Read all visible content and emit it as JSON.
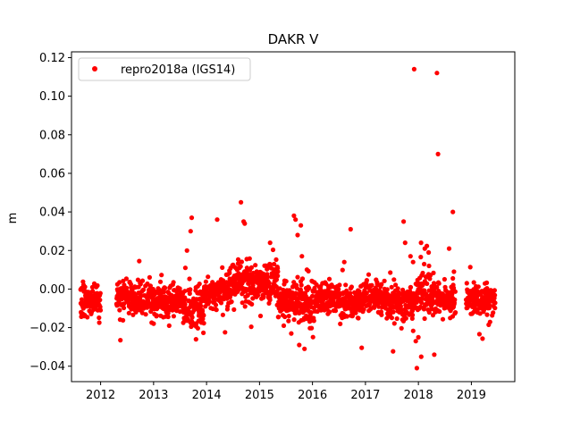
{
  "chart_data": {
    "type": "scatter",
    "title": "DAKR V",
    "xlabel": "",
    "ylabel": "m",
    "xlim": [
      2011.45,
      2019.82
    ],
    "ylim": [
      -0.048,
      0.123
    ],
    "grid": false,
    "legend_position": "top-left",
    "x_ticks": [
      2012,
      2013,
      2014,
      2015,
      2016,
      2017,
      2018,
      2019
    ],
    "x_tick_labels": [
      "2012",
      "2013",
      "2014",
      "2015",
      "2016",
      "2017",
      "2018",
      "2019"
    ],
    "y_ticks": [
      -0.04,
      -0.02,
      0.0,
      0.02,
      0.04,
      0.06,
      0.08,
      0.1,
      0.12
    ],
    "y_tick_labels": [
      "−0.04",
      "−0.02",
      "0.00",
      "0.02",
      "0.04",
      "0.06",
      "0.08",
      "0.10",
      "0.12"
    ],
    "series": [
      {
        "name": "repro2018a (IGS14)",
        "color": "#ff0000",
        "marker": "circle",
        "segments": [
          {
            "x0": 2011.62,
            "x1": 2011.72,
            "mean": -0.006,
            "std": 0.005
          },
          {
            "x0": 2011.72,
            "x1": 2012.0,
            "mean": -0.006,
            "std": 0.004
          },
          {
            "x0": 2012.3,
            "x1": 2012.6,
            "mean": -0.004,
            "std": 0.004
          },
          {
            "x0": 2012.6,
            "x1": 2013.0,
            "mean": -0.006,
            "std": 0.004
          },
          {
            "x0": 2013.0,
            "x1": 2013.55,
            "mean": -0.006,
            "std": 0.004
          },
          {
            "x0": 2013.55,
            "x1": 2013.95,
            "mean": -0.009,
            "std": 0.005
          },
          {
            "x0": 2013.95,
            "x1": 2014.4,
            "mean": -0.002,
            "std": 0.004
          },
          {
            "x0": 2014.4,
            "x1": 2014.85,
            "mean": 0.004,
            "std": 0.005
          },
          {
            "x0": 2014.85,
            "x1": 2015.35,
            "mean": 0.003,
            "std": 0.005
          },
          {
            "x0": 2015.35,
            "x1": 2015.7,
            "mean": -0.006,
            "std": 0.005
          },
          {
            "x0": 2015.7,
            "x1": 2016.05,
            "mean": -0.007,
            "std": 0.007
          },
          {
            "x0": 2016.05,
            "x1": 2016.5,
            "mean": -0.004,
            "std": 0.004
          },
          {
            "x0": 2016.5,
            "x1": 2016.95,
            "mean": -0.007,
            "std": 0.004
          },
          {
            "x0": 2016.95,
            "x1": 2017.4,
            "mean": -0.004,
            "std": 0.004
          },
          {
            "x0": 2017.4,
            "x1": 2017.95,
            "mean": -0.008,
            "std": 0.005
          },
          {
            "x0": 2017.95,
            "x1": 2018.35,
            "mean": -0.003,
            "std": 0.005
          },
          {
            "x0": 2018.35,
            "x1": 2018.7,
            "mean": -0.006,
            "std": 0.004
          },
          {
            "x0": 2018.9,
            "x1": 2019.45,
            "mean": -0.006,
            "std": 0.004
          }
        ],
        "outliers": [
          [
            2013.63,
            0.02
          ],
          [
            2013.7,
            0.03
          ],
          [
            2013.72,
            0.037
          ],
          [
            2013.6,
            0.011
          ],
          [
            2014.2,
            0.036
          ],
          [
            2014.65,
            0.045
          ],
          [
            2014.7,
            0.035
          ],
          [
            2014.72,
            0.034
          ],
          [
            2015.2,
            0.024
          ],
          [
            2015.65,
            0.038
          ],
          [
            2015.68,
            0.036
          ],
          [
            2015.78,
            0.033
          ],
          [
            2015.72,
            0.028
          ],
          [
            2015.8,
            0.017
          ],
          [
            2015.75,
            -0.029
          ],
          [
            2015.85,
            -0.031
          ],
          [
            2015.6,
            -0.023
          ],
          [
            2016.72,
            0.031
          ],
          [
            2016.6,
            0.014
          ],
          [
            2017.72,
            0.035
          ],
          [
            2017.75,
            0.024
          ],
          [
            2017.85,
            0.017
          ],
          [
            2017.9,
            0.014
          ],
          [
            2017.92,
            0.114
          ],
          [
            2017.95,
            -0.027
          ],
          [
            2017.97,
            -0.041
          ],
          [
            2018.0,
            -0.025
          ],
          [
            2018.05,
            0.024
          ],
          [
            2018.12,
            0.021
          ],
          [
            2018.2,
            0.012
          ],
          [
            2018.3,
            -0.034
          ],
          [
            2018.35,
            0.112
          ],
          [
            2018.37,
            0.07
          ],
          [
            2018.58,
            0.021
          ],
          [
            2018.6,
            -0.015
          ],
          [
            2018.65,
            0.04
          ],
          [
            2018.67,
            0.009
          ]
        ]
      }
    ]
  }
}
